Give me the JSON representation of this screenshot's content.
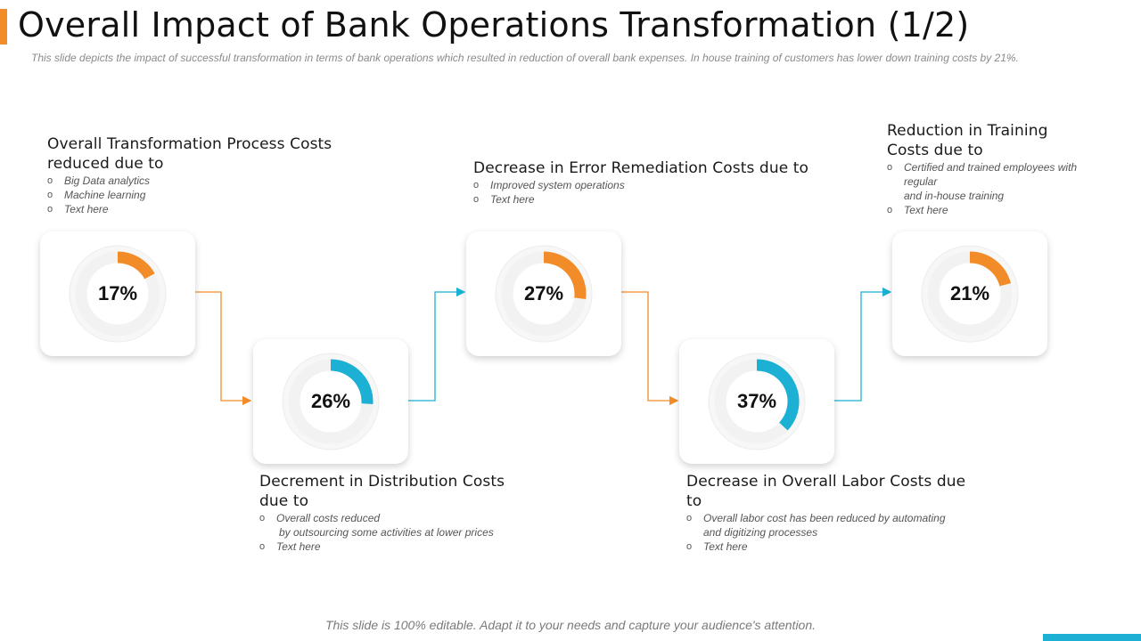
{
  "title": "Overall Impact of Bank Operations Transformation (1/2)",
  "subtitle": "This slide depicts the impact of successful transformation in terms of bank operations which resulted in reduction of overall bank expenses. In house training of customers has lower down training costs by 21%.",
  "colors": {
    "orange": "#f28c28",
    "blue": "#1bb0d4",
    "track": "#f2f2f2"
  },
  "stages": [
    {
      "percent": "17%",
      "value": 17,
      "color": "orange",
      "heading": [
        "Overall Transformation Process Costs",
        "reduced due to"
      ],
      "bullets": [
        "Big Data analytics",
        "Machine learning",
        "Text here"
      ]
    },
    {
      "percent": "26%",
      "value": 26,
      "color": "blue",
      "heading": [
        "Decrement in Distribution Costs",
        "due to"
      ],
      "bullets": [
        "Overall costs reduced",
        "by outsourcing some activities at lower prices",
        "Text here"
      ]
    },
    {
      "percent": "27%",
      "value": 27,
      "color": "orange",
      "heading": [
        "Decrease in Error Remediation Costs due to"
      ],
      "bullets": [
        "Improved system operations",
        "Text here"
      ]
    },
    {
      "percent": "37%",
      "value": 37,
      "color": "blue",
      "heading": [
        "Decrease in Overall Labor Costs due",
        "to"
      ],
      "bullets": [
        "Overall labor cost has been reduced by automating",
        "and digitizing processes",
        "Text here"
      ]
    },
    {
      "percent": "21%",
      "value": 21,
      "color": "orange",
      "heading": [
        "Reduction in Training",
        "Costs due to"
      ],
      "bullets": [
        "Certified and trained employees with",
        "regular",
        "and in-house training",
        "Text here"
      ]
    }
  ],
  "footer": "This slide is 100% editable. Adapt it to your needs and capture your audience's attention."
}
